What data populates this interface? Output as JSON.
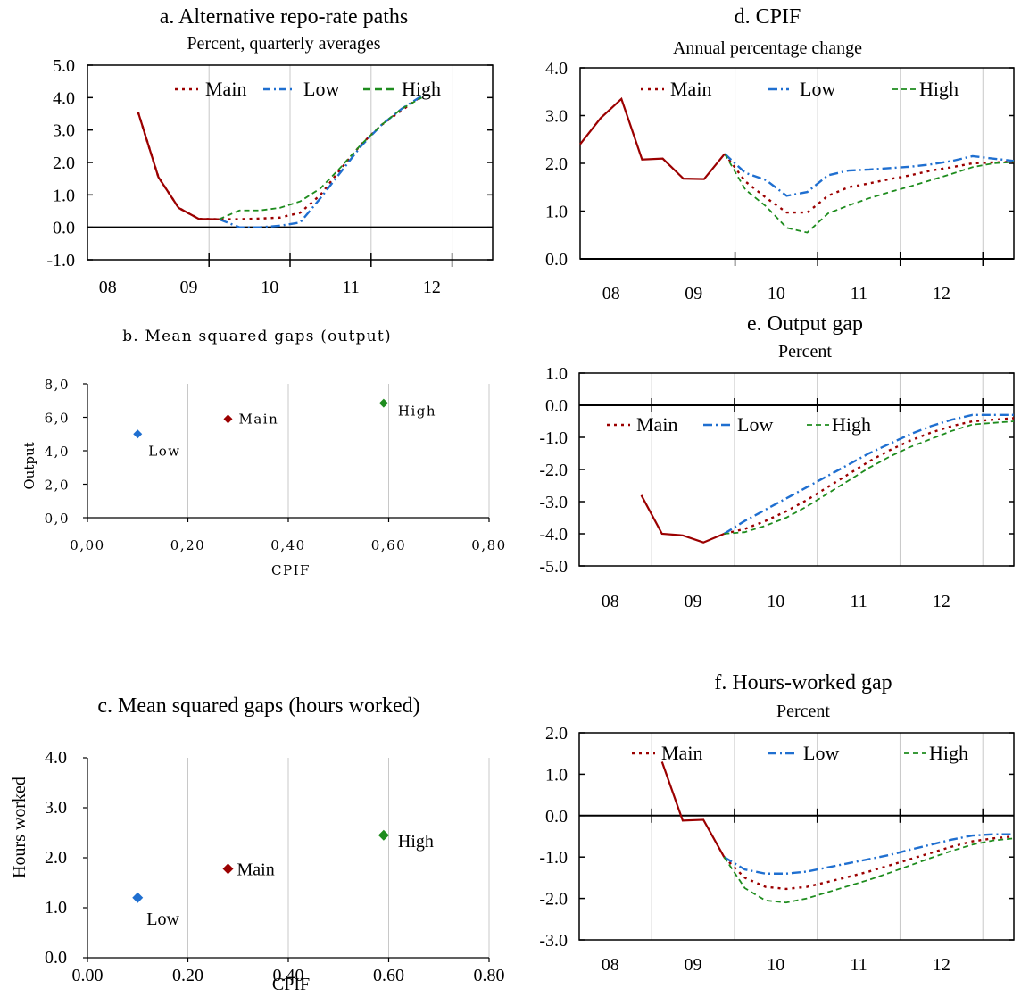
{
  "colors": {
    "main": "#9b0000",
    "low": "#1f6fd0",
    "high": "#1e8c1e",
    "axis": "#000000",
    "grid": "#c8c8c8"
  },
  "panels": {
    "a": {
      "title": "a. Alternative repo-rate paths",
      "subtitle": "Percent, quarterly averages",
      "legend": {
        "main": "Main",
        "low": "Low",
        "high": "High"
      }
    },
    "b": {
      "title": "b. Mean squared gaps (output)",
      "xlabel": "CPIF",
      "ylabel": "Output"
    },
    "c": {
      "title": "c. Mean squared gaps (hours worked)",
      "xlabel": "CPIF",
      "ylabel": "Hours worked"
    },
    "d": {
      "title": "d. CPIF",
      "subtitle": "Annual percentage change",
      "legend": {
        "main": "Main",
        "low": "Low",
        "high": "High"
      }
    },
    "e": {
      "title": "e. Output gap",
      "subtitle": "Percent",
      "legend": {
        "main": "Main",
        "low": "Low",
        "high": "High"
      }
    },
    "f": {
      "title": "f. Hours-worked gap",
      "subtitle": "Percent",
      "legend": {
        "main": "Main",
        "low": "Low",
        "high": "High"
      }
    }
  },
  "chart_data": [
    {
      "id": "a",
      "type": "line",
      "title": "a. Alternative repo-rate paths",
      "subtitle": "Percent, quarterly averages",
      "x_tick_labels": [
        "08",
        "09",
        "10",
        "11",
        "12"
      ],
      "y_tick_labels": [
        "5.0",
        "4.0",
        "3.0",
        "2.0",
        "1.0",
        "0.0",
        "-1.0"
      ],
      "ylim": [
        -1.0,
        5.0
      ],
      "xlim": [
        2008.0,
        2013.0
      ],
      "x": [
        2008.625,
        2008.875,
        2009.125,
        2009.375,
        2009.625,
        2009.875,
        2010.125,
        2010.375,
        2010.625,
        2010.875,
        2011.125,
        2011.375,
        2011.625,
        2011.875,
        2012.125,
        2012.375,
        2012.625
      ],
      "series": [
        {
          "name": "Main",
          "style": "dotted",
          "values": [
            3.55,
            1.55,
            0.6,
            0.26,
            0.25,
            0.25,
            0.27,
            0.3,
            0.45,
            1.0,
            1.8,
            2.55,
            3.15,
            3.6,
            4.05,
            null,
            null
          ]
        },
        {
          "name": "Low",
          "style": "dash-dot",
          "values": [
            null,
            null,
            null,
            null,
            0.25,
            0.0,
            0.0,
            0.05,
            0.15,
            0.9,
            1.7,
            2.5,
            3.15,
            3.65,
            4.05,
            null,
            null
          ]
        },
        {
          "name": "High",
          "style": "dashed",
          "values": [
            null,
            null,
            null,
            null,
            0.25,
            0.52,
            0.52,
            0.6,
            0.8,
            1.2,
            1.85,
            2.55,
            3.15,
            3.65,
            4.0,
            null,
            null
          ]
        }
      ],
      "history": {
        "x": [
          2008.625,
          2008.875,
          2009.125,
          2009.375,
          2009.625
        ],
        "values": [
          3.55,
          1.55,
          0.6,
          0.26,
          0.25
        ]
      },
      "legend": "top-right"
    },
    {
      "id": "b",
      "type": "scatter",
      "title": "b. Mean squared gaps (output)",
      "xlabel": "CPIF",
      "ylabel": "Output",
      "x_tick_labels": [
        "0,00",
        "0,20",
        "0,40",
        "0,60",
        "0,80"
      ],
      "y_tick_labels": [
        "8,0",
        "6,0",
        "4,0",
        "2,0",
        "0,0"
      ],
      "xlim": [
        0,
        0.8
      ],
      "ylim": [
        0,
        8
      ],
      "points": [
        {
          "name": "Low",
          "x": 0.1,
          "y": 5.0
        },
        {
          "name": "Main",
          "x": 0.28,
          "y": 5.9
        },
        {
          "name": "High",
          "x": 0.59,
          "y": 6.85
        }
      ]
    },
    {
      "id": "c",
      "type": "scatter",
      "title": "c. Mean squared gaps (hours worked)",
      "xlabel": "CPIF",
      "ylabel": "Hours worked",
      "x_tick_labels": [
        "0.00",
        "0.20",
        "0.40",
        "0.60",
        "0.80"
      ],
      "y_tick_labels": [
        "4.0",
        "3.0",
        "2.0",
        "1.0",
        "0.0"
      ],
      "xlim": [
        0,
        0.8
      ],
      "ylim": [
        0,
        4
      ],
      "points": [
        {
          "name": "Low",
          "x": 0.1,
          "y": 1.2
        },
        {
          "name": "Main",
          "x": 0.28,
          "y": 1.78
        },
        {
          "name": "High",
          "x": 0.59,
          "y": 2.45
        }
      ]
    },
    {
      "id": "d",
      "type": "line",
      "title": "d. CPIF",
      "subtitle": "Annual percentage change",
      "x_tick_labels": [
        "08",
        "09",
        "10",
        "11",
        "12"
      ],
      "y_tick_labels": [
        "4.0",
        "3.0",
        "2.0",
        "1.0",
        "0.0"
      ],
      "ylim": [
        0.0,
        4.0
      ],
      "xlim": [
        2007.625,
        2012.875
      ],
      "history": {
        "x": [
          2007.625,
          2007.875,
          2008.125,
          2008.375,
          2008.625,
          2008.875,
          2009.125,
          2009.375
        ],
        "values": [
          2.4,
          2.95,
          3.35,
          2.08,
          2.1,
          1.68,
          1.67,
          2.2
        ]
      },
      "series": [
        {
          "name": "Main",
          "style": "dotted",
          "x": [
            2009.375,
            2009.625,
            2009.875,
            2010.125,
            2010.375,
            2010.625,
            2010.875,
            2011.125,
            2011.375,
            2011.625,
            2011.875,
            2012.125,
            2012.375,
            2012.625,
            2012.875
          ],
          "values": [
            2.2,
            1.62,
            1.28,
            0.97,
            0.97,
            1.32,
            1.5,
            1.58,
            1.67,
            1.75,
            1.85,
            1.92,
            2.0,
            2.02,
            2.03
          ]
        },
        {
          "name": "Low",
          "style": "dash-dot",
          "x": [
            2009.375,
            2009.625,
            2009.875,
            2010.125,
            2010.375,
            2010.625,
            2010.875,
            2011.125,
            2011.375,
            2011.625,
            2011.875,
            2012.125,
            2012.375,
            2012.625,
            2012.875
          ],
          "values": [
            2.2,
            1.8,
            1.65,
            1.32,
            1.4,
            1.75,
            1.85,
            1.87,
            1.9,
            1.93,
            1.98,
            2.05,
            2.15,
            2.1,
            2.05
          ]
        },
        {
          "name": "High",
          "style": "dashed",
          "x": [
            2009.375,
            2009.625,
            2009.875,
            2010.125,
            2010.375,
            2010.625,
            2010.875,
            2011.125,
            2011.375,
            2011.625,
            2011.875,
            2012.125,
            2012.375,
            2012.625,
            2012.875
          ],
          "values": [
            2.2,
            1.45,
            1.1,
            0.65,
            0.55,
            0.95,
            1.12,
            1.27,
            1.4,
            1.52,
            1.65,
            1.78,
            1.92,
            2.0,
            2.03
          ]
        }
      ],
      "legend": "top"
    },
    {
      "id": "e",
      "type": "line",
      "title": "e. Output gap",
      "subtitle": "Percent",
      "x_tick_labels": [
        "08",
        "09",
        "10",
        "11",
        "12"
      ],
      "y_tick_labels": [
        "1.0",
        "0.0",
        "-1.0",
        "-2.0",
        "-3.0",
        "-4.0",
        "-5.0"
      ],
      "ylim": [
        -5.0,
        1.0
      ],
      "xlim": [
        2007.625,
        2012.875
      ],
      "history": {
        "x": [
          2008.375,
          2008.625,
          2008.875,
          2009.125,
          2009.375
        ],
        "values": [
          -2.8,
          -4.0,
          -4.05,
          -4.27,
          -4.0
        ]
      },
      "series": [
        {
          "name": "Main",
          "style": "dotted",
          "x": [
            2009.375,
            2009.625,
            2009.875,
            2010.125,
            2010.375,
            2010.625,
            2010.875,
            2011.125,
            2011.375,
            2011.625,
            2011.875,
            2012.125,
            2012.375,
            2012.625,
            2012.875
          ],
          "values": [
            -4.0,
            -3.85,
            -3.6,
            -3.3,
            -2.95,
            -2.55,
            -2.15,
            -1.75,
            -1.4,
            -1.1,
            -0.85,
            -0.65,
            -0.5,
            -0.45,
            -0.4
          ]
        },
        {
          "name": "Low",
          "style": "dash-dot",
          "x": [
            2009.375,
            2009.625,
            2009.875,
            2010.125,
            2010.375,
            2010.625,
            2010.875,
            2011.125,
            2011.375,
            2011.625,
            2011.875,
            2012.125,
            2012.375,
            2012.625,
            2012.875
          ],
          "values": [
            -4.0,
            -3.6,
            -3.25,
            -2.9,
            -2.55,
            -2.2,
            -1.85,
            -1.5,
            -1.2,
            -0.9,
            -0.65,
            -0.45,
            -0.3,
            -0.3,
            -0.3
          ]
        },
        {
          "name": "High",
          "style": "dashed",
          "x": [
            2009.375,
            2009.625,
            2009.875,
            2010.125,
            2010.375,
            2010.625,
            2010.875,
            2011.125,
            2011.375,
            2011.625,
            2011.875,
            2012.125,
            2012.375,
            2012.625,
            2012.875
          ],
          "values": [
            -4.0,
            -3.95,
            -3.75,
            -3.5,
            -3.15,
            -2.75,
            -2.35,
            -1.95,
            -1.6,
            -1.3,
            -1.05,
            -0.8,
            -0.6,
            -0.55,
            -0.5
          ]
        }
      ],
      "legend": "top"
    },
    {
      "id": "f",
      "type": "line",
      "title": "f. Hours-worked gap",
      "subtitle": "Percent",
      "x_tick_labels": [
        "08",
        "09",
        "10",
        "11",
        "12"
      ],
      "y_tick_labels": [
        "2.0",
        "1.0",
        "0.0",
        "-1.0",
        "-2.0",
        "-3.0"
      ],
      "ylim": [
        -3.0,
        2.0
      ],
      "xlim": [
        2007.625,
        2012.875
      ],
      "history": {
        "x": [
          2008.625,
          2008.875,
          2009.125,
          2009.375
        ],
        "values": [
          1.3,
          -0.12,
          -0.1,
          -1.0
        ]
      },
      "series": [
        {
          "name": "Main",
          "style": "dotted",
          "x": [
            2009.375,
            2009.625,
            2009.875,
            2010.125,
            2010.375,
            2010.625,
            2010.875,
            2011.125,
            2011.375,
            2011.625,
            2011.875,
            2012.125,
            2012.375,
            2012.625,
            2012.875
          ],
          "values": [
            -1.0,
            -1.5,
            -1.72,
            -1.77,
            -1.72,
            -1.6,
            -1.48,
            -1.35,
            -1.2,
            -1.05,
            -0.9,
            -0.75,
            -0.62,
            -0.55,
            -0.5
          ]
        },
        {
          "name": "Low",
          "style": "dash-dot",
          "x": [
            2009.375,
            2009.625,
            2009.875,
            2010.125,
            2010.375,
            2010.625,
            2010.875,
            2011.125,
            2011.375,
            2011.625,
            2011.875,
            2012.125,
            2012.375,
            2012.625,
            2012.875
          ],
          "values": [
            -1.0,
            -1.3,
            -1.4,
            -1.4,
            -1.35,
            -1.25,
            -1.15,
            -1.05,
            -0.95,
            -0.82,
            -0.7,
            -0.58,
            -0.48,
            -0.45,
            -0.45
          ]
        },
        {
          "name": "High",
          "style": "dashed",
          "x": [
            2009.375,
            2009.625,
            2009.875,
            2010.125,
            2010.375,
            2010.625,
            2010.875,
            2011.125,
            2011.375,
            2011.625,
            2011.875,
            2012.125,
            2012.375,
            2012.625,
            2012.875
          ],
          "values": [
            -1.0,
            -1.75,
            -2.05,
            -2.1,
            -2.0,
            -1.85,
            -1.7,
            -1.55,
            -1.38,
            -1.2,
            -1.02,
            -0.85,
            -0.7,
            -0.6,
            -0.55
          ]
        }
      ],
      "legend": "top"
    }
  ]
}
